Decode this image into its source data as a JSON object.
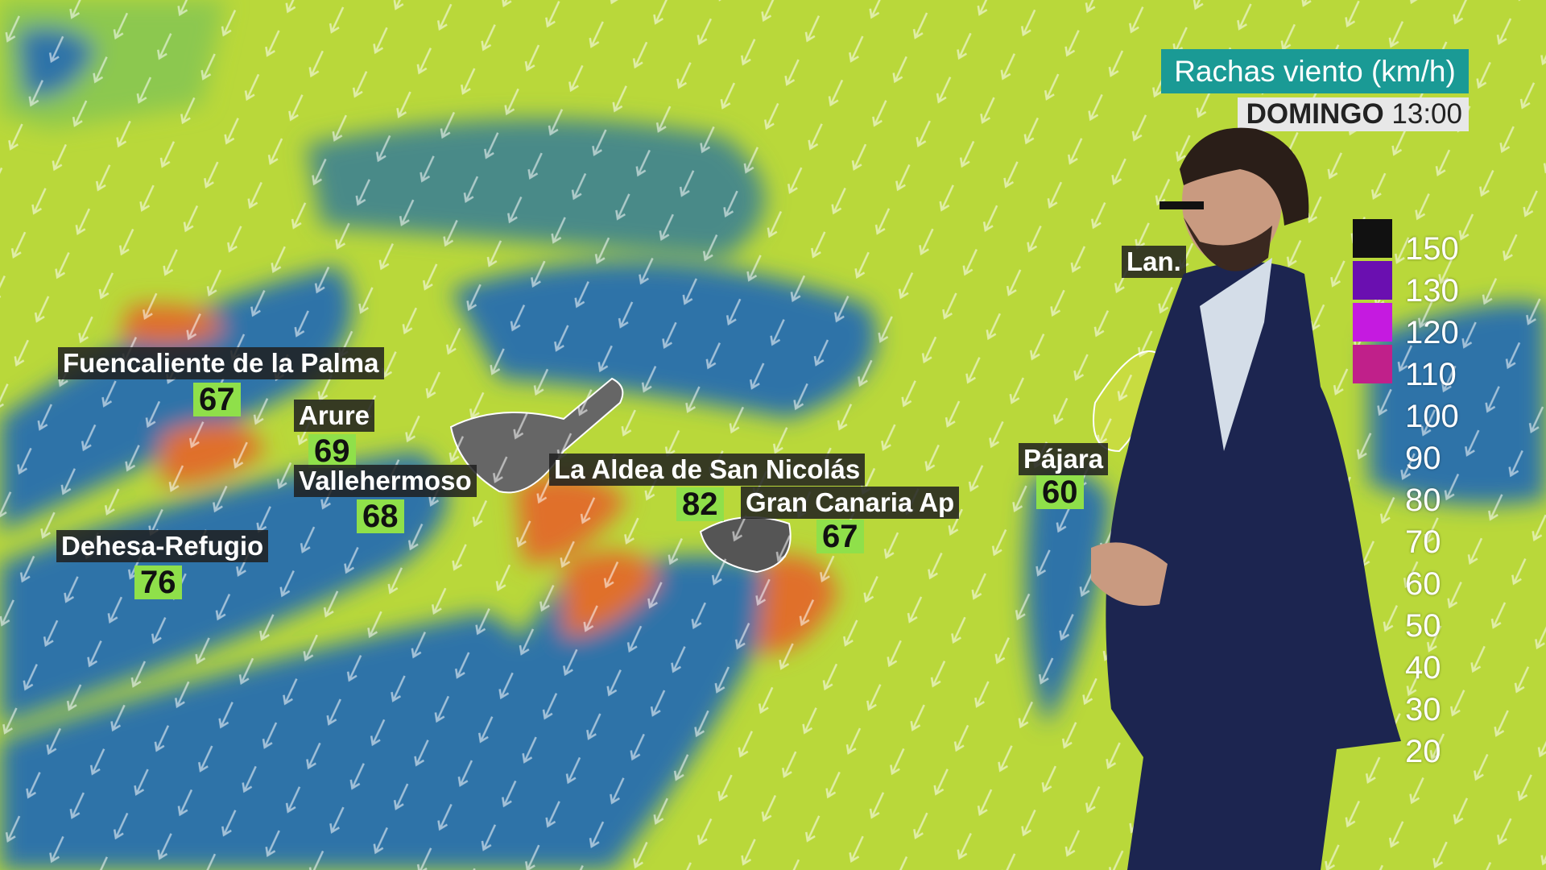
{
  "header": {
    "title": "Rachas viento (km/h)",
    "day": "DOMINGO",
    "time": "13:00"
  },
  "legend": {
    "values": [
      "150",
      "130",
      "120",
      "110",
      "100",
      "90",
      "80",
      "70",
      "60",
      "50",
      "40",
      "30",
      "20"
    ],
    "colors": [
      "#111111",
      "#6a0fb0",
      "#c51ae0",
      "#d01aa0",
      "#c0208a",
      "#d8304a",
      "#e8602a",
      "#ee8a22",
      "#e8e020",
      "#b8dc3a",
      "#8ccf48",
      "#3f9ea0",
      "#2a6ab0"
    ]
  },
  "stations": [
    {
      "name": "Fuencaliente de la Palma",
      "value": "67"
    },
    {
      "name": "Arure",
      "value": "69"
    },
    {
      "name": "Vallehermoso",
      "value": "68"
    },
    {
      "name": "Dehesa-Refugio",
      "value": "76"
    },
    {
      "name": "La Aldea de San Nicolás",
      "value": "82"
    },
    {
      "name": "Gran Canaria Ap",
      "value": "67"
    },
    {
      "name": "Pájara",
      "value": "60"
    },
    {
      "name": "Lan.",
      "value": null
    }
  ],
  "colors": {
    "sea_calm": "#2f73a8",
    "field": "#b9d83a",
    "strong": "#e0702a",
    "title_bg": "#1a9a95"
  }
}
